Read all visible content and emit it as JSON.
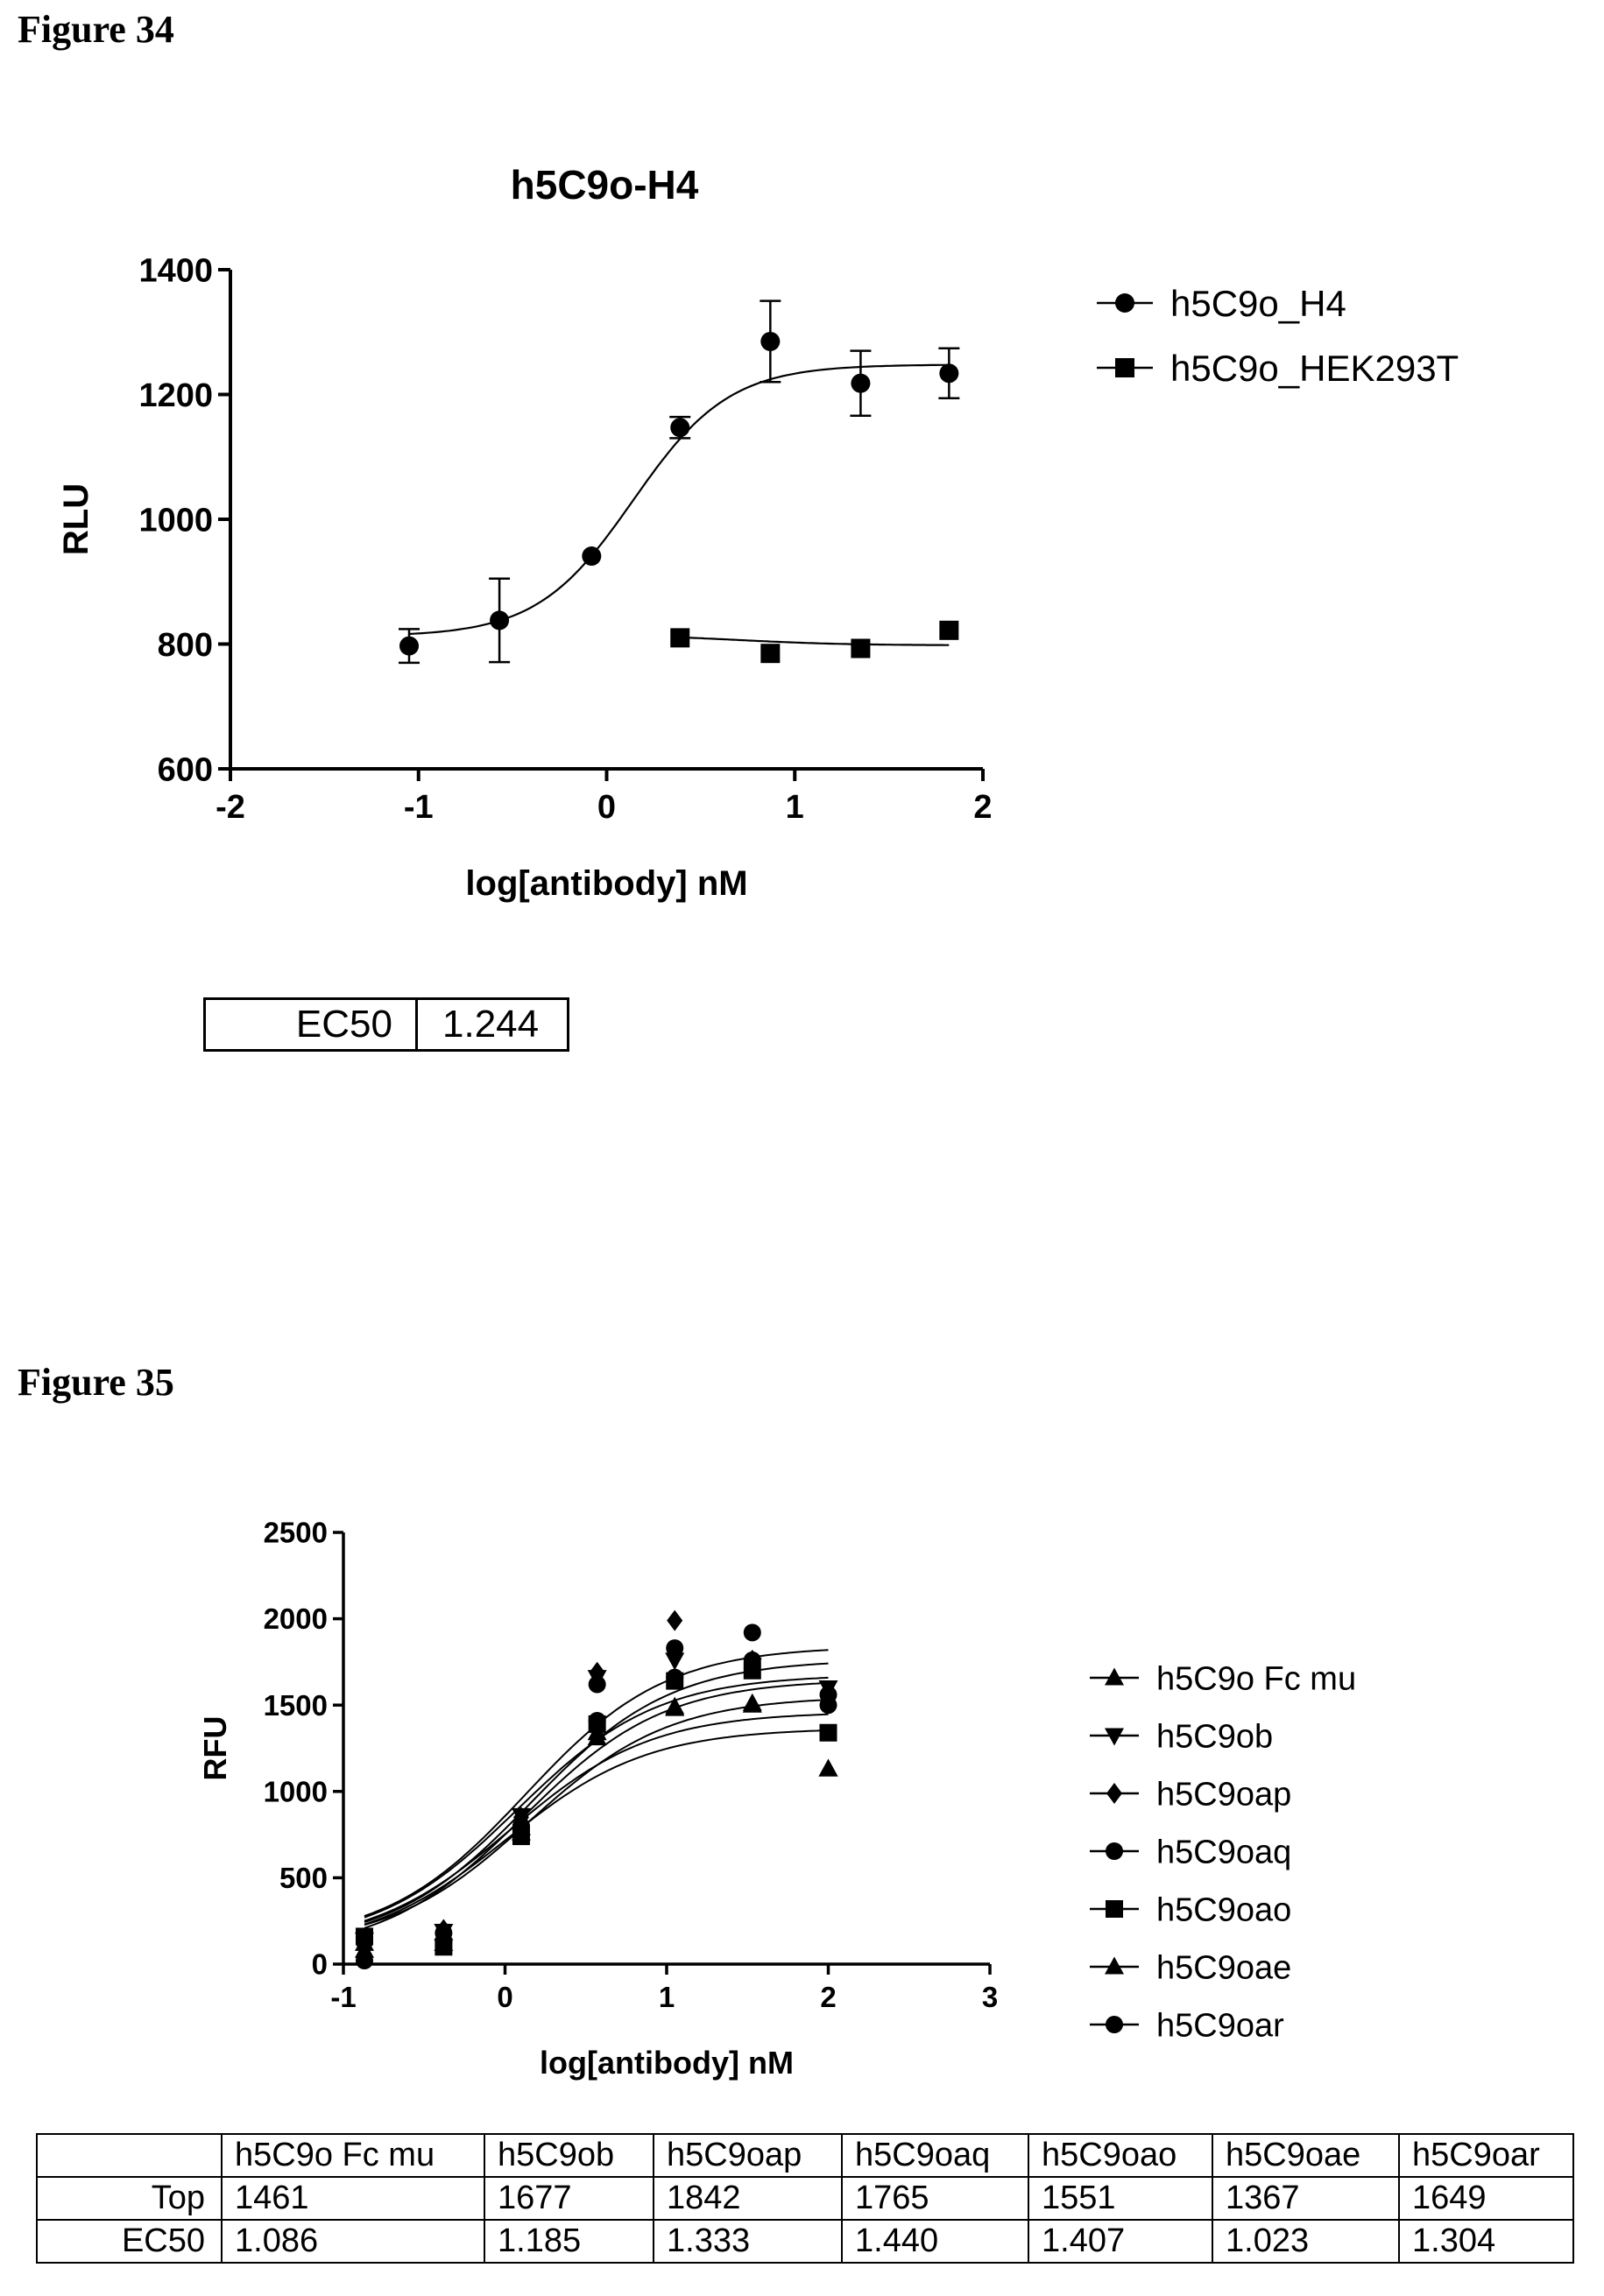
{
  "figure34": {
    "label": "Figure 34",
    "ec50_label": "EC50",
    "ec50_value": "1.244"
  },
  "figure35": {
    "label": "Figure 35",
    "table": {
      "columns": [
        "",
        "h5C9o Fc mu",
        "h5C9ob",
        "h5C9oap",
        "h5C9oaq",
        "h5C9oao",
        "h5C9oae",
        "h5C9oar"
      ],
      "rows": [
        {
          "name": "Top",
          "values": [
            "1461",
            "1677",
            "1842",
            "1765",
            "1551",
            "1367",
            "1649"
          ]
        },
        {
          "name": "EC50",
          "values": [
            "1.086",
            "1.185",
            "1.333",
            "1.440",
            "1.407",
            "1.023",
            "1.304"
          ]
        }
      ]
    }
  },
  "chart_data": [
    {
      "type": "scatter",
      "title": "h5C9o-H4",
      "xlabel": "log[antibody] nM",
      "ylabel": "RLU",
      "xlim": [
        -2,
        2
      ],
      "ylim": [
        600,
        1400
      ],
      "xticks": [
        "-2",
        "-1",
        "0",
        "1",
        "2"
      ],
      "yticks": [
        "600",
        "800",
        "1000",
        "1200",
        "1400"
      ],
      "grid": false,
      "legend_position": "right",
      "series": [
        {
          "name": "h5C9o_H4",
          "marker": "circle",
          "x": [
            -1.05,
            -0.57,
            -0.08,
            0.39,
            0.87,
            1.35,
            1.82
          ],
          "y": [
            797,
            838,
            941,
            1147,
            1285,
            1218,
            1234
          ],
          "err": [
            27,
            67,
            0,
            17,
            65,
            52,
            40
          ],
          "fit": {
            "bottom": 812,
            "top": 1248,
            "logec50": 0.14,
            "hill": 1.7
          }
        },
        {
          "name": "h5C9o_HEK293T",
          "marker": "square",
          "x": [
            0.39,
            0.87,
            1.35,
            1.82
          ],
          "y": [
            810,
            785,
            793,
            822
          ],
          "err": [
            0,
            0,
            0,
            0
          ],
          "fit": {
            "bottom": 815,
            "top": 798,
            "logec50": 0.7,
            "hill": 1.5
          }
        }
      ]
    },
    {
      "type": "scatter",
      "title": "",
      "xlabel": "log[antibody] nM",
      "ylabel": "RFU",
      "xlim": [
        -1,
        3
      ],
      "ylim": [
        0,
        2500
      ],
      "xticks": [
        "-1",
        "0",
        "1",
        "2",
        "3"
      ],
      "yticks": [
        "0",
        "500",
        "1000",
        "1500",
        "2000",
        "2500"
      ],
      "grid": false,
      "legend_position": "right",
      "x": [
        -0.87,
        -0.38,
        0.1,
        0.57,
        1.05,
        1.53,
        2.0
      ],
      "series": [
        {
          "name": "h5C9o Fc mu",
          "marker": "triangle-up",
          "y": [
            120,
            180,
            790,
            1340,
            1490,
            1510,
            1130
          ],
          "fit": {
            "bottom": 100,
            "top": 1461,
            "logec50": 0.036
          }
        },
        {
          "name": "h5C9ob",
          "marker": "triangle-down",
          "y": [
            140,
            190,
            860,
            1660,
            1760,
            1730,
            1600
          ],
          "fit": {
            "bottom": 110,
            "top": 1677,
            "logec50": 0.074
          }
        },
        {
          "name": "h5C9oap",
          "marker": "diamond",
          "y": [
            150,
            200,
            850,
            1690,
            1990,
            1760,
            1580
          ],
          "fit": {
            "bottom": 120,
            "top": 1842,
            "logec50": 0.125
          }
        },
        {
          "name": "h5C9oaq",
          "marker": "circle",
          "y": [
            130,
            180,
            800,
            1620,
            1830,
            1920,
            1560
          ],
          "fit": {
            "bottom": 100,
            "top": 1765,
            "logec50": 0.158
          }
        },
        {
          "name": "h5C9oao",
          "marker": "square",
          "y": [
            160,
            100,
            740,
            1390,
            1640,
            1700,
            1340
          ],
          "fit": {
            "bottom": 100,
            "top": 1551,
            "logec50": 0.148
          }
        },
        {
          "name": "h5C9oae",
          "marker": "triangle-up",
          "y": [
            80,
            120,
            760,
            1310,
            1480,
            1500,
            1130
          ],
          "fit": {
            "bottom": 80,
            "top": 1367,
            "logec50": 0.01
          }
        },
        {
          "name": "h5C9oar",
          "marker": "circle",
          "y": [
            20,
            130,
            790,
            1410,
            1660,
            1760,
            1500
          ],
          "fit": {
            "bottom": 60,
            "top": 1649,
            "logec50": 0.115
          }
        }
      ]
    }
  ]
}
